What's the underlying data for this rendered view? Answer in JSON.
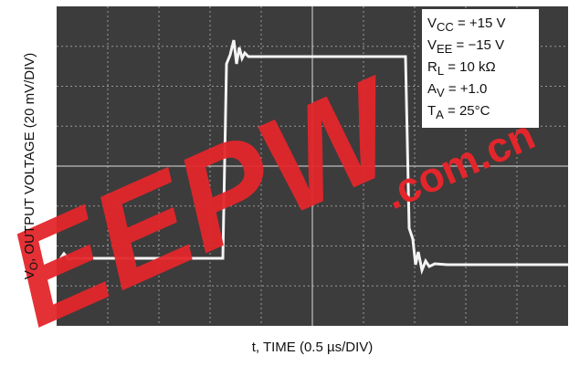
{
  "y_label": {
    "symbol": "V",
    "subscript": "O",
    "text": ", OUTPUT VOLTAGE (20 mV/DIV)"
  },
  "x_label": "t, TIME (0.5 µs/DIV)",
  "conditions": [
    {
      "symbol": "V",
      "subscript": "CC",
      "text": " = +15 V"
    },
    {
      "symbol": "V",
      "subscript": "EE",
      "text": " = −15 V"
    },
    {
      "symbol": "R",
      "subscript": "L",
      "text": " = 10 kΩ"
    },
    {
      "symbol": "A",
      "subscript": "V",
      "text": " = +1.0"
    },
    {
      "symbol": "T",
      "subscript": "A",
      "text": " = 25°C"
    }
  ],
  "watermark": {
    "brand": "EEPW",
    "domain": ".com.cn"
  }
}
